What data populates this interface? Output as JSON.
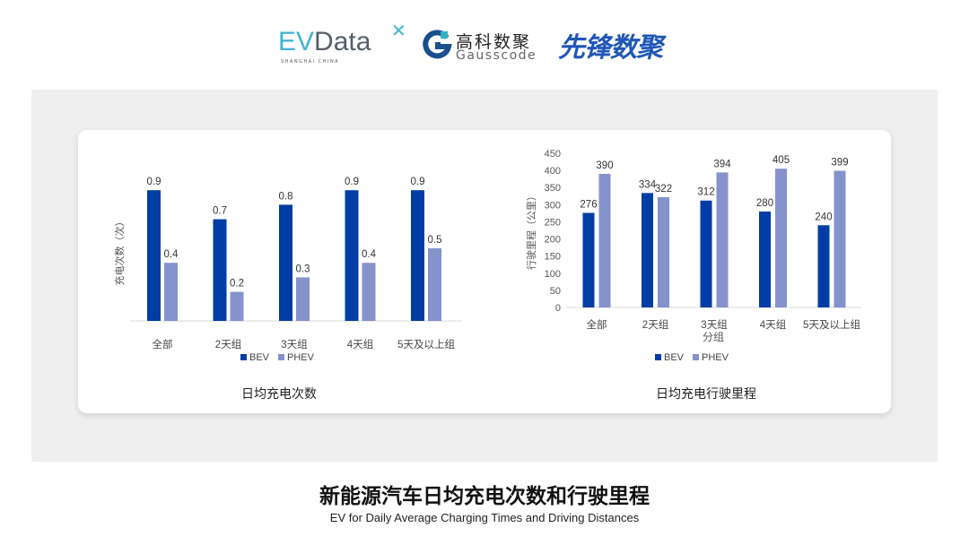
{
  "logos": {
    "evdata": {
      "text_a": "EV",
      "text_b": "Data",
      "sub": "SHANGHAI CHINA"
    },
    "gausscode": {
      "cn": "高科数聚",
      "en": "Gausscode"
    },
    "xianfeng": {
      "cn": "先锋数聚"
    }
  },
  "colors": {
    "bev": "#003DA5",
    "phev": "#8592CC",
    "background_panel": "#EFEFEF"
  },
  "title": "新能源汽车日均充电次数和行驶里程",
  "subtitle": "EV for Daily Average Charging Times and Driving Distances",
  "chart_data": [
    {
      "type": "bar",
      "title": "日均充电次数",
      "ylabel": "充电次数（次）",
      "xlabel": "",
      "categories": [
        "全部",
        "2天组",
        "3天组",
        "4天组",
        "5天及以上组"
      ],
      "series": [
        {
          "name": "BEV",
          "values": [
            0.9,
            0.7,
            0.8,
            0.9,
            0.9
          ]
        },
        {
          "name": "PHEV",
          "values": [
            0.4,
            0.2,
            0.3,
            0.4,
            0.5
          ]
        }
      ],
      "ylim": [
        0,
        1.0
      ],
      "y_ticks_shown": false,
      "grid": false,
      "legend": "bottom"
    },
    {
      "type": "bar",
      "title": "日均充电行驶里程",
      "ylabel": "行驶里程（公里）",
      "xlabel": "分组",
      "categories": [
        "全部",
        "2天组",
        "3天组",
        "4天组",
        "5天及以上组"
      ],
      "series": [
        {
          "name": "BEV",
          "values": [
            276,
            334,
            312,
            280,
            240
          ]
        },
        {
          "name": "PHEV",
          "values": [
            390,
            322,
            394,
            405,
            399
          ]
        }
      ],
      "ylim": [
        0,
        450
      ],
      "yticks": [
        "0",
        "50",
        "100",
        "150",
        "200",
        "250",
        "300",
        "350",
        "400",
        "450"
      ],
      "grid": false,
      "legend": "bottom"
    }
  ]
}
